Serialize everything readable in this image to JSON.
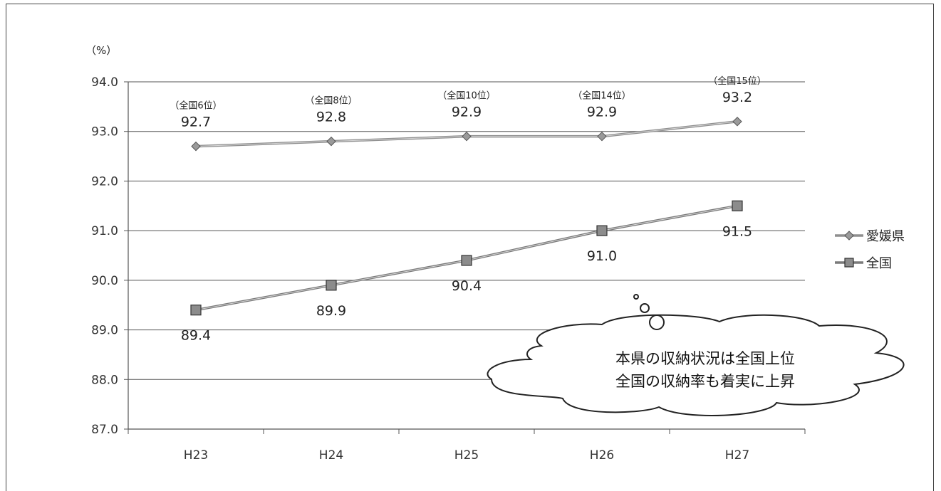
{
  "chart_data": {
    "type": "line",
    "unit_label": "（%）",
    "categories": [
      "H23",
      "H24",
      "H25",
      "H26",
      "H27"
    ],
    "ylim": [
      87.0,
      94.0
    ],
    "yticks": [
      "87.0",
      "88.0",
      "89.0",
      "90.0",
      "91.0",
      "92.0",
      "93.0",
      "94.0"
    ],
    "grid": true,
    "legend_position": "right",
    "series": [
      {
        "name": "愛媛県",
        "marker": "diamond",
        "color": "#8f8f8f",
        "values": [
          92.7,
          92.8,
          92.9,
          92.9,
          93.2
        ],
        "labels": [
          "92.7",
          "92.8",
          "92.9",
          "92.9",
          "93.2"
        ],
        "ranks": [
          "（全国6位）",
          "（全国8位）",
          "（全国10位）",
          "（全国14位）",
          "（全国15位）"
        ]
      },
      {
        "name": "全国",
        "marker": "square",
        "color": "#7a7a7a",
        "values": [
          89.4,
          89.9,
          90.4,
          91.0,
          91.5
        ],
        "labels": [
          "89.4",
          "89.9",
          "90.4",
          "91.0",
          "91.5"
        ]
      }
    ],
    "annotation": {
      "shape": "thought-cloud",
      "lines": [
        "本県の収納状況は全国上位",
        "全国の収納率も着実に上昇"
      ]
    }
  }
}
